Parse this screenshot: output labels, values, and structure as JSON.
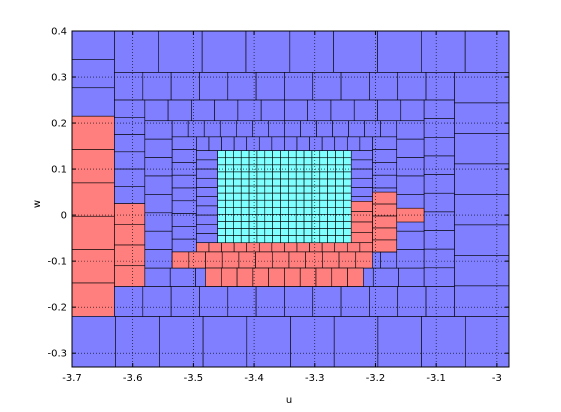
{
  "colors": {
    "blue": "#7f7fff",
    "red": "#ff7f7f",
    "cyan": "#7fffff",
    "edge": "#000000",
    "grid": "#000000"
  },
  "chart_data": {
    "type": "heatmap",
    "description_of_marks": "adaptive rectangular subdivision of the (u,w) plane; each cell is a rectangle colored by category",
    "xlabel": "u",
    "ylabel": "w",
    "xlim": [
      -3.7,
      -2.98
    ],
    "ylim": [
      -0.33,
      0.4
    ],
    "xticks": [
      -3.7,
      -3.6,
      -3.5,
      -3.4,
      -3.3,
      -3.2,
      -3.1,
      -3.0
    ],
    "xtick_labels": [
      "-3.7",
      "-3.6",
      "-3.5",
      "-3.4",
      "-3.3",
      "-3.2",
      "-3.1",
      "-3"
    ],
    "yticks": [
      -0.3,
      -0.2,
      -0.1,
      0,
      0.1,
      0.2,
      0.3,
      0.4
    ],
    "ytick_labels": [
      "-0.3",
      "-0.2",
      "-0.1",
      "0",
      "0.1",
      "0.2",
      "0.3",
      "0.4"
    ],
    "grid": true,
    "grid_style": "dotted",
    "background_color": "blue",
    "regions": [
      {
        "color": "red",
        "u": [
          -3.7,
          -3.63
        ],
        "w": [
          -0.22,
          0.215
        ],
        "cols": 1,
        "rows": 6
      },
      {
        "color": "blue",
        "u": [
          -3.7,
          -3.63
        ],
        "w": [
          0.215,
          0.4
        ],
        "cols": 1,
        "rows": 3
      },
      {
        "color": "blue",
        "u": [
          -3.7,
          -2.98
        ],
        "w": [
          -0.33,
          -0.22
        ],
        "cols": 10,
        "rows": 1
      },
      {
        "color": "blue",
        "u": [
          -3.63,
          -2.98
        ],
        "w": [
          0.31,
          0.4
        ],
        "cols": 9,
        "rows": 1
      },
      {
        "color": "blue",
        "u": [
          -3.07,
          -2.98
        ],
        "w": [
          -0.22,
          0.31
        ],
        "cols": 1,
        "rows": 8
      },
      {
        "color": "blue",
        "u": [
          -3.63,
          -3.07
        ],
        "w": [
          -0.22,
          -0.155
        ],
        "cols": 12,
        "rows": 1
      },
      {
        "color": "blue",
        "u": [
          -3.63,
          -3.07
        ],
        "w": [
          0.25,
          0.31
        ],
        "cols": 12,
        "rows": 1
      },
      {
        "color": "blue",
        "u": [
          -3.63,
          -3.58
        ],
        "w": [
          0.025,
          0.25
        ],
        "cols": 1,
        "rows": 6
      },
      {
        "color": "red",
        "u": [
          -3.63,
          -3.58
        ],
        "w": [
          -0.155,
          0.025
        ],
        "cols": 1,
        "rows": 4
      },
      {
        "color": "blue",
        "u": [
          -3.12,
          -3.07
        ],
        "w": [
          -0.155,
          0.25
        ],
        "cols": 1,
        "rows": 10
      },
      {
        "color": "blue",
        "u": [
          -3.58,
          -3.12
        ],
        "w": [
          -0.155,
          -0.115
        ],
        "cols": 11,
        "rows": 1
      },
      {
        "color": "blue",
        "u": [
          -3.58,
          -3.12
        ],
        "w": [
          0.205,
          0.25
        ],
        "cols": 12,
        "rows": 1
      },
      {
        "color": "blue",
        "u": [
          -3.58,
          -3.535
        ],
        "w": [
          -0.115,
          0.205
        ],
        "cols": 1,
        "rows": 8
      },
      {
        "color": "blue",
        "u": [
          -3.165,
          -3.12
        ],
        "w": [
          -0.115,
          0.205
        ],
        "cols": 1,
        "rows": 8
      },
      {
        "color": "red",
        "u": [
          -3.165,
          -3.12
        ],
        "w": [
          -0.015,
          0.015
        ],
        "cols": 1,
        "rows": 1
      },
      {
        "color": "blue",
        "u": [
          -3.535,
          -3.165
        ],
        "w": [
          -0.115,
          -0.08
        ],
        "cols": 14,
        "rows": 1
      },
      {
        "color": "blue",
        "u": [
          -3.535,
          -3.165
        ],
        "w": [
          0.17,
          0.205
        ],
        "cols": 14,
        "rows": 1
      },
      {
        "color": "blue",
        "u": [
          -3.535,
          -3.495
        ],
        "w": [
          -0.08,
          0.17
        ],
        "cols": 1,
        "rows": 9
      },
      {
        "color": "blue",
        "u": [
          -3.205,
          -3.165
        ],
        "w": [
          -0.08,
          0.17
        ],
        "cols": 1,
        "rows": 9
      },
      {
        "color": "red",
        "u": [
          -3.205,
          -3.165
        ],
        "w": [
          -0.08,
          0.05
        ],
        "cols": 1,
        "rows": 5
      },
      {
        "color": "blue",
        "u": [
          -3.495,
          -3.205
        ],
        "w": [
          0.14,
          0.17
        ],
        "cols": 14,
        "rows": 1
      },
      {
        "color": "blue",
        "u": [
          -3.495,
          -3.46
        ],
        "w": [
          -0.06,
          0.14
        ],
        "cols": 1,
        "rows": 10
      },
      {
        "color": "blue",
        "u": [
          -3.24,
          -3.205
        ],
        "w": [
          -0.06,
          0.14
        ],
        "cols": 1,
        "rows": 10
      },
      {
        "color": "red",
        "u": [
          -3.24,
          -3.205
        ],
        "w": [
          -0.06,
          0.03
        ],
        "cols": 1,
        "rows": 4
      },
      {
        "color": "red",
        "u": [
          -3.495,
          -3.205
        ],
        "w": [
          -0.08,
          -0.06
        ],
        "cols": 14,
        "rows": 1
      },
      {
        "color": "red",
        "u": [
          -3.535,
          -3.205
        ],
        "w": [
          -0.115,
          -0.08
        ],
        "cols": 12,
        "rows": 1
      },
      {
        "color": "red",
        "u": [
          -3.48,
          -3.22
        ],
        "w": [
          -0.155,
          -0.115
        ],
        "cols": 10,
        "rows": 1
      },
      {
        "color": "cyan",
        "u": [
          -3.46,
          -3.24
        ],
        "w": [
          -0.06,
          0.14
        ],
        "cols": 17,
        "rows": 13
      }
    ]
  }
}
